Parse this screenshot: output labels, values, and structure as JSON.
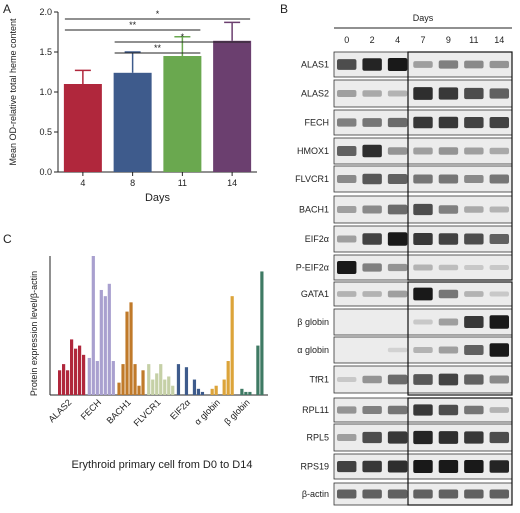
{
  "panels": {
    "a": "A",
    "b": "B",
    "c": "C"
  },
  "chart_data": [
    {
      "type": "bar",
      "panel": "A",
      "categories": [
        "4",
        "8",
        "11",
        "14"
      ],
      "values": [
        1.1,
        1.24,
        1.45,
        1.64
      ],
      "errors": [
        0.17,
        0.26,
        0.24,
        0.23
      ],
      "colors": [
        "#b0273c",
        "#3e5b8c",
        "#6aa84f",
        "#6b3f6f"
      ],
      "xlabel": "Days",
      "ylabel": "Mean OD-relative  total heme content",
      "ylim": [
        0.0,
        2.0
      ],
      "yticks": [
        "0.0",
        "0.5",
        "1.0",
        "1.5",
        "2.0"
      ],
      "significance": [
        {
          "from": "4",
          "to": "14",
          "label": "*"
        },
        {
          "from": "4",
          "to": "11",
          "label": "**"
        },
        {
          "from": "8",
          "to": "14",
          "label": "*"
        },
        {
          "from": "8",
          "to": "11",
          "label": "**"
        }
      ]
    },
    {
      "type": "bar",
      "panel": "C",
      "categories": [
        "ALAS2",
        "FECH",
        "BACH1",
        "FLVCR1",
        "EIF2α",
        "α globin",
        "β globin"
      ],
      "series_colors": [
        "#b0273c",
        "#a9a0cf",
        "#c07a2a",
        "#c5d0a6",
        "#3e5b8c",
        "#dca43a",
        "#3f7a64"
      ],
      "groups": [
        [
          0.8,
          1.0,
          0.8,
          1.8,
          1.5,
          1.6,
          1.3
        ],
        [
          1.2,
          4.5,
          1.1,
          3.4,
          3.2,
          3.6,
          1.1
        ],
        [
          0.4,
          1.0,
          2.7,
          3.0,
          1.0,
          0.3,
          0.8
        ],
        [
          1.0,
          0.5,
          0.7,
          1.0,
          0.5,
          0.6,
          0.3
        ],
        [
          1.0,
          0.0,
          0.9,
          0.0,
          0.5,
          0.2,
          0.1
        ],
        [
          0.0,
          0.2,
          0.3,
          0.0,
          0.5,
          1.1,
          3.2
        ],
        [
          0.0,
          0.2,
          0.1,
          0.1,
          0.0,
          1.6,
          4.0
        ]
      ],
      "ylabel": "Protein expression  level/β-actin",
      "xlabel": "Erythroid primary cell from D0 to D14",
      "ylim": [
        0,
        4.5
      ]
    }
  ],
  "blot": {
    "header": "Days",
    "days": [
      "0",
      "2",
      "4",
      "7",
      "9",
      "11",
      "14"
    ],
    "rows": [
      {
        "name": "ALAS1",
        "i": [
          0.7,
          0.9,
          0.95,
          0.3,
          0.45,
          0.4,
          0.35
        ]
      },
      {
        "name": "ALAS2",
        "i": [
          0.3,
          0.25,
          0.2,
          0.85,
          0.8,
          0.7,
          0.6
        ]
      },
      {
        "name": "FECH",
        "i": [
          0.45,
          0.5,
          0.55,
          0.8,
          0.8,
          0.75,
          0.75
        ]
      },
      {
        "name": "HMOX1",
        "i": [
          0.6,
          0.85,
          0.35,
          0.3,
          0.35,
          0.3,
          0.25
        ]
      },
      {
        "name": "FLVCR1",
        "i": [
          0.4,
          0.65,
          0.6,
          0.5,
          0.5,
          0.4,
          0.5
        ]
      },
      {
        "name": "BACH1",
        "i": [
          0.3,
          0.4,
          0.55,
          0.7,
          0.45,
          0.25,
          0.2
        ]
      },
      {
        "name": "EIF2α",
        "i": [
          0.3,
          0.75,
          0.95,
          0.8,
          0.75,
          0.7,
          0.6
        ]
      },
      {
        "name": "P-EIF2α",
        "i": [
          0.95,
          0.45,
          0.35,
          0.2,
          0.15,
          0.1,
          0.1
        ]
      },
      {
        "name": "GATA1",
        "i": [
          0.2,
          0.2,
          0.3,
          0.95,
          0.5,
          0.2,
          0.1
        ]
      },
      {
        "name": "β globin",
        "i": [
          0.0,
          0.0,
          0.0,
          0.1,
          0.3,
          0.8,
          0.95
        ]
      },
      {
        "name": "α globin",
        "i": [
          0.0,
          0.0,
          0.05,
          0.2,
          0.3,
          0.6,
          0.95
        ]
      },
      {
        "name": "TfR1",
        "i": [
          0.1,
          0.35,
          0.55,
          0.65,
          0.75,
          0.6,
          0.4
        ]
      },
      {
        "name": "RPL11",
        "i": [
          0.35,
          0.45,
          0.5,
          0.8,
          0.7,
          0.5,
          0.2
        ]
      },
      {
        "name": "RPL5",
        "i": [
          0.3,
          0.7,
          0.8,
          0.9,
          0.85,
          0.8,
          0.7
        ]
      },
      {
        "name": "RPS19",
        "i": [
          0.75,
          0.8,
          0.85,
          0.95,
          0.95,
          0.95,
          0.9
        ]
      },
      {
        "name": "β-actin",
        "i": [
          0.6,
          0.6,
          0.6,
          0.6,
          0.6,
          0.6,
          0.6
        ]
      }
    ]
  }
}
